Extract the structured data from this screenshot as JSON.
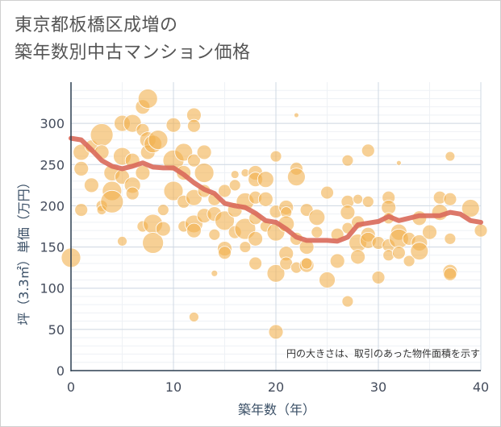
{
  "title": {
    "line1": "東京都板橋区成増の",
    "line2": "築年数別中古マンション価格"
  },
  "chart_data": {
    "type": "scatter",
    "title": "東京都板橋区成増の築年数別中古マンション価格",
    "xlabel": "築年数（年）",
    "ylabel": "坪（3.3㎡）単価（万円）",
    "xlim": [
      0,
      40
    ],
    "ylim": [
      0,
      350
    ],
    "xticks": [
      0,
      10,
      20,
      30,
      40
    ],
    "yticks": [
      0,
      50,
      100,
      150,
      200,
      250,
      300
    ],
    "grid": true,
    "note": "円の大きさは、取引のあった物件面積を示す",
    "colors": {
      "bubble": "#f2b04f",
      "line": "#d9695a",
      "grid": "#cfd8e3",
      "axis": "#2c3e50"
    },
    "trend": {
      "x": [
        0,
        1,
        2,
        3,
        4,
        5,
        6,
        7,
        8,
        9,
        10,
        11,
        12,
        13,
        14,
        15,
        16,
        17,
        18,
        19,
        20,
        21,
        22,
        23,
        24,
        25,
        26,
        27,
        28,
        29,
        30,
        31,
        32,
        33,
        34,
        35,
        36,
        37,
        38,
        39,
        40
      ],
      "y": [
        282,
        280,
        268,
        255,
        248,
        245,
        248,
        252,
        247,
        246,
        246,
        238,
        228,
        220,
        215,
        203,
        200,
        198,
        191,
        182,
        180,
        172,
        162,
        158,
        158,
        158,
        157,
        162,
        177,
        179,
        181,
        187,
        182,
        185,
        188,
        188,
        188,
        192,
        190,
        182,
        180
      ]
    },
    "points": [
      {
        "x": 0,
        "y": 137,
        "s": 12
      },
      {
        "x": 1,
        "y": 265,
        "s": 10
      },
      {
        "x": 1,
        "y": 245,
        "s": 9
      },
      {
        "x": 1,
        "y": 195,
        "s": 8
      },
      {
        "x": 2,
        "y": 272,
        "s": 8
      },
      {
        "x": 2,
        "y": 225,
        "s": 9
      },
      {
        "x": 3,
        "y": 286,
        "s": 14
      },
      {
        "x": 3,
        "y": 265,
        "s": 9
      },
      {
        "x": 3,
        "y": 200,
        "s": 7
      },
      {
        "x": 3,
        "y": 195,
        "s": 6
      },
      {
        "x": 4,
        "y": 240,
        "s": 10
      },
      {
        "x": 4,
        "y": 218,
        "s": 12
      },
      {
        "x": 4,
        "y": 205,
        "s": 14
      },
      {
        "x": 5,
        "y": 300,
        "s": 10
      },
      {
        "x": 5,
        "y": 260,
        "s": 11
      },
      {
        "x": 5,
        "y": 235,
        "s": 9
      },
      {
        "x": 5,
        "y": 157,
        "s": 6
      },
      {
        "x": 6,
        "y": 300,
        "s": 11
      },
      {
        "x": 6,
        "y": 255,
        "s": 9
      },
      {
        "x": 6,
        "y": 225,
        "s": 10
      },
      {
        "x": 6,
        "y": 215,
        "s": 8
      },
      {
        "x": 7,
        "y": 320,
        "s": 9
      },
      {
        "x": 7,
        "y": 292,
        "s": 8
      },
      {
        "x": 7,
        "y": 240,
        "s": 9
      },
      {
        "x": 7,
        "y": 175,
        "s": 7
      },
      {
        "x": 7.5,
        "y": 330,
        "s": 12
      },
      {
        "x": 7.5,
        "y": 280,
        "s": 10
      },
      {
        "x": 7.5,
        "y": 265,
        "s": 9
      },
      {
        "x": 8,
        "y": 275,
        "s": 11
      },
      {
        "x": 8,
        "y": 178,
        "s": 12
      },
      {
        "x": 8,
        "y": 155,
        "s": 13
      },
      {
        "x": 8.5,
        "y": 280,
        "s": 12
      },
      {
        "x": 9,
        "y": 195,
        "s": 7
      },
      {
        "x": 9,
        "y": 172,
        "s": 9
      },
      {
        "x": 10,
        "y": 298,
        "s": 9
      },
      {
        "x": 10,
        "y": 255,
        "s": 13
      },
      {
        "x": 10,
        "y": 218,
        "s": 12
      },
      {
        "x": 11,
        "y": 265,
        "s": 11
      },
      {
        "x": 11,
        "y": 240,
        "s": 9
      },
      {
        "x": 11,
        "y": 205,
        "s": 8
      },
      {
        "x": 11,
        "y": 175,
        "s": 7
      },
      {
        "x": 12,
        "y": 310,
        "s": 9
      },
      {
        "x": 12,
        "y": 297,
        "s": 8
      },
      {
        "x": 12,
        "y": 255,
        "s": 8
      },
      {
        "x": 12,
        "y": 210,
        "s": 10
      },
      {
        "x": 12,
        "y": 178,
        "s": 11
      },
      {
        "x": 12,
        "y": 170,
        "s": 9
      },
      {
        "x": 12,
        "y": 65,
        "s": 6
      },
      {
        "x": 13,
        "y": 265,
        "s": 9
      },
      {
        "x": 13,
        "y": 240,
        "s": 12
      },
      {
        "x": 13,
        "y": 218,
        "s": 8
      },
      {
        "x": 13,
        "y": 188,
        "s": 9
      },
      {
        "x": 14,
        "y": 208,
        "s": 8
      },
      {
        "x": 14,
        "y": 190,
        "s": 9
      },
      {
        "x": 14,
        "y": 165,
        "s": 7
      },
      {
        "x": 14,
        "y": 118,
        "s": 4
      },
      {
        "x": 15,
        "y": 218,
        "s": 8
      },
      {
        "x": 15,
        "y": 182,
        "s": 12
      },
      {
        "x": 15,
        "y": 148,
        "s": 9
      },
      {
        "x": 15,
        "y": 143,
        "s": 8
      },
      {
        "x": 16,
        "y": 238,
        "s": 5
      },
      {
        "x": 16,
        "y": 225,
        "s": 7
      },
      {
        "x": 16,
        "y": 195,
        "s": 9
      },
      {
        "x": 16,
        "y": 168,
        "s": 8
      },
      {
        "x": 17,
        "y": 205,
        "s": 11
      },
      {
        "x": 17,
        "y": 172,
        "s": 13
      },
      {
        "x": 17,
        "y": 150,
        "s": 7
      },
      {
        "x": 17,
        "y": 240,
        "s": 5
      },
      {
        "x": 18,
        "y": 240,
        "s": 9
      },
      {
        "x": 18,
        "y": 232,
        "s": 9
      },
      {
        "x": 18,
        "y": 210,
        "s": 8
      },
      {
        "x": 18,
        "y": 185,
        "s": 8
      },
      {
        "x": 18,
        "y": 160,
        "s": 9
      },
      {
        "x": 18,
        "y": 130,
        "s": 8
      },
      {
        "x": 19,
        "y": 232,
        "s": 10
      },
      {
        "x": 19,
        "y": 208,
        "s": 9
      },
      {
        "x": 19,
        "y": 175,
        "s": 7
      },
      {
        "x": 20,
        "y": 260,
        "s": 7
      },
      {
        "x": 20,
        "y": 193,
        "s": 8
      },
      {
        "x": 20,
        "y": 168,
        "s": 11
      },
      {
        "x": 20,
        "y": 118,
        "s": 11
      },
      {
        "x": 20,
        "y": 47,
        "s": 9
      },
      {
        "x": 21,
        "y": 198,
        "s": 9
      },
      {
        "x": 21,
        "y": 192,
        "s": 7
      },
      {
        "x": 21,
        "y": 178,
        "s": 10
      },
      {
        "x": 21,
        "y": 142,
        "s": 9
      },
      {
        "x": 21,
        "y": 130,
        "s": 8
      },
      {
        "x": 22,
        "y": 310,
        "s": 3
      },
      {
        "x": 22,
        "y": 245,
        "s": 8
      },
      {
        "x": 22,
        "y": 235,
        "s": 11
      },
      {
        "x": 22,
        "y": 160,
        "s": 8
      },
      {
        "x": 22,
        "y": 125,
        "s": 7
      },
      {
        "x": 23,
        "y": 195,
        "s": 8
      },
      {
        "x": 23,
        "y": 150,
        "s": 9
      },
      {
        "x": 23,
        "y": 128,
        "s": 9
      },
      {
        "x": 23,
        "y": 130,
        "s": 7
      },
      {
        "x": 24,
        "y": 186,
        "s": 10
      },
      {
        "x": 24,
        "y": 168,
        "s": 7
      },
      {
        "x": 25,
        "y": 216,
        "s": 8
      },
      {
        "x": 25,
        "y": 110,
        "s": 10
      },
      {
        "x": 26,
        "y": 165,
        "s": 8
      },
      {
        "x": 26,
        "y": 133,
        "s": 9
      },
      {
        "x": 27,
        "y": 255,
        "s": 7
      },
      {
        "x": 27,
        "y": 205,
        "s": 8
      },
      {
        "x": 27,
        "y": 192,
        "s": 9
      },
      {
        "x": 27,
        "y": 173,
        "s": 7
      },
      {
        "x": 27,
        "y": 84,
        "s": 7
      },
      {
        "x": 28,
        "y": 208,
        "s": 6
      },
      {
        "x": 28,
        "y": 180,
        "s": 8
      },
      {
        "x": 28,
        "y": 155,
        "s": 11
      },
      {
        "x": 28,
        "y": 138,
        "s": 9
      },
      {
        "x": 29,
        "y": 267,
        "s": 8
      },
      {
        "x": 29,
        "y": 205,
        "s": 7
      },
      {
        "x": 29,
        "y": 165,
        "s": 9
      },
      {
        "x": 29,
        "y": 158,
        "s": 10
      },
      {
        "x": 30,
        "y": 155,
        "s": 8
      },
      {
        "x": 30,
        "y": 113,
        "s": 8
      },
      {
        "x": 31,
        "y": 210,
        "s": 8
      },
      {
        "x": 31,
        "y": 198,
        "s": 9
      },
      {
        "x": 31,
        "y": 185,
        "s": 7
      },
      {
        "x": 31,
        "y": 152,
        "s": 8
      },
      {
        "x": 31,
        "y": 140,
        "s": 7
      },
      {
        "x": 32,
        "y": 252,
        "s": 3
      },
      {
        "x": 32,
        "y": 168,
        "s": 10
      },
      {
        "x": 32,
        "y": 160,
        "s": 12
      },
      {
        "x": 32,
        "y": 143,
        "s": 8
      },
      {
        "x": 33,
        "y": 160,
        "s": 8
      },
      {
        "x": 33,
        "y": 133,
        "s": 7
      },
      {
        "x": 34,
        "y": 185,
        "s": 9
      },
      {
        "x": 34,
        "y": 155,
        "s": 10
      },
      {
        "x": 34,
        "y": 145,
        "s": 11
      },
      {
        "x": 35,
        "y": 168,
        "s": 9
      },
      {
        "x": 36,
        "y": 210,
        "s": 8
      },
      {
        "x": 36,
        "y": 192,
        "s": 10
      },
      {
        "x": 37,
        "y": 260,
        "s": 6
      },
      {
        "x": 37,
        "y": 208,
        "s": 8
      },
      {
        "x": 37,
        "y": 160,
        "s": 7
      },
      {
        "x": 37,
        "y": 120,
        "s": 9
      },
      {
        "x": 37,
        "y": 117,
        "s": 8
      },
      {
        "x": 39,
        "y": 197,
        "s": 11
      },
      {
        "x": 40,
        "y": 170,
        "s": 8
      }
    ]
  }
}
